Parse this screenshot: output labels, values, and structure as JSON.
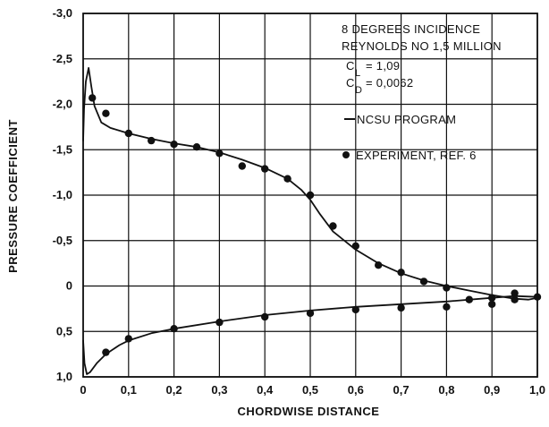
{
  "chart_data": {
    "type": "scatter",
    "xlabel": "CHORDWISE DISTANCE",
    "ylabel": "PRESSURE COEFFICIENT",
    "xlim": [
      0,
      1.0
    ],
    "ylim": [
      1.0,
      -3.0
    ],
    "y_inverted": true,
    "grid": true,
    "xticks": [
      {
        "value": 0,
        "label": "0"
      },
      {
        "value": 0.1,
        "label": "0,1"
      },
      {
        "value": 0.2,
        "label": "0,2"
      },
      {
        "value": 0.3,
        "label": "0,3"
      },
      {
        "value": 0.4,
        "label": "0,4"
      },
      {
        "value": 0.5,
        "label": "0,5"
      },
      {
        "value": 0.6,
        "label": "0,6"
      },
      {
        "value": 0.7,
        "label": "0,7"
      },
      {
        "value": 0.8,
        "label": "0,8"
      },
      {
        "value": 0.9,
        "label": "0,9"
      },
      {
        "value": 1.0,
        "label": "1,0"
      }
    ],
    "yticks": [
      {
        "value": -3.0,
        "label": "-3,0"
      },
      {
        "value": -2.5,
        "label": "-2,5"
      },
      {
        "value": -2.0,
        "label": "-2,0"
      },
      {
        "value": -1.5,
        "label": "-1,5"
      },
      {
        "value": -1.0,
        "label": "-1,0"
      },
      {
        "value": -0.5,
        "label": "-0,5"
      },
      {
        "value": 0,
        "label": "0"
      },
      {
        "value": 0.5,
        "label": "0,5"
      },
      {
        "value": 1.0,
        "label": "1,0"
      }
    ],
    "annotations": [
      "8 DEGREES INCIDENCE",
      "REYNOLDS NO 1,5 MILLION"
    ],
    "coefficients": {
      "cl_label": "C",
      "cl_sub": "L",
      "cl_value": "= 1,09",
      "cd_label": "C",
      "cd_sub": "D",
      "cd_value": "= 0,0062"
    },
    "legend": {
      "placement": "top-right",
      "program_label": "NCSU PROGRAM",
      "experiment_label": "EXPERIMENT, REF. 6"
    },
    "series": [
      {
        "name": "NCSU PROGRAM",
        "kind": "line",
        "segments": [
          [
            [
              0,
              -1.6
            ],
            [
              0.002,
              -1.95
            ],
            [
              0.006,
              -2.25
            ],
            [
              0.012,
              -2.4
            ],
            [
              0.018,
              -2.2
            ],
            [
              0.025,
              -1.98
            ],
            [
              0.04,
              -1.8
            ],
            [
              0.06,
              -1.74
            ],
            [
              0.1,
              -1.68
            ],
            [
              0.15,
              -1.62
            ],
            [
              0.2,
              -1.57
            ],
            [
              0.25,
              -1.53
            ],
            [
              0.3,
              -1.47
            ],
            [
              0.35,
              -1.39
            ],
            [
              0.4,
              -1.3
            ],
            [
              0.45,
              -1.18
            ],
            [
              0.48,
              -1.06
            ],
            [
              0.5,
              -0.95
            ],
            [
              0.52,
              -0.8
            ],
            [
              0.55,
              -0.6
            ],
            [
              0.6,
              -0.4
            ],
            [
              0.65,
              -0.25
            ],
            [
              0.7,
              -0.14
            ],
            [
              0.75,
              -0.06
            ],
            [
              0.8,
              0.0
            ],
            [
              0.85,
              0.05
            ],
            [
              0.9,
              0.1
            ],
            [
              0.95,
              0.14
            ],
            [
              0.98,
              0.15
            ],
            [
              1.0,
              0.13
            ]
          ],
          [
            [
              0,
              0.6
            ],
            [
              0.003,
              0.85
            ],
            [
              0.008,
              0.97
            ],
            [
              0.015,
              0.95
            ],
            [
              0.03,
              0.85
            ],
            [
              0.05,
              0.75
            ],
            [
              0.08,
              0.65
            ],
            [
              0.1,
              0.6
            ],
            [
              0.15,
              0.52
            ],
            [
              0.2,
              0.47
            ],
            [
              0.3,
              0.39
            ],
            [
              0.4,
              0.32
            ],
            [
              0.5,
              0.27
            ],
            [
              0.6,
              0.23
            ],
            [
              0.7,
              0.2
            ],
            [
              0.8,
              0.17
            ],
            [
              0.9,
              0.13
            ],
            [
              0.95,
              0.11
            ],
            [
              1.0,
              0.12
            ]
          ]
        ]
      },
      {
        "name": "EXPERIMENT, REF. 6",
        "kind": "scatter",
        "points": [
          [
            0.02,
            -2.07
          ],
          [
            0.05,
            -1.9
          ],
          [
            0.1,
            -1.68
          ],
          [
            0.15,
            -1.6
          ],
          [
            0.2,
            -1.56
          ],
          [
            0.25,
            -1.53
          ],
          [
            0.3,
            -1.46
          ],
          [
            0.35,
            -1.32
          ],
          [
            0.4,
            -1.29
          ],
          [
            0.45,
            -1.18
          ],
          [
            0.5,
            -1.0
          ],
          [
            0.55,
            -0.66
          ],
          [
            0.6,
            -0.44
          ],
          [
            0.65,
            -0.23
          ],
          [
            0.7,
            -0.15
          ],
          [
            0.75,
            -0.05
          ],
          [
            0.8,
            0.02
          ],
          [
            0.85,
            0.15
          ],
          [
            0.9,
            0.13
          ],
          [
            0.95,
            0.08
          ],
          [
            1.0,
            0.12
          ],
          [
            0.05,
            0.73
          ],
          [
            0.1,
            0.58
          ],
          [
            0.2,
            0.47
          ],
          [
            0.3,
            0.4
          ],
          [
            0.4,
            0.34
          ],
          [
            0.5,
            0.3
          ],
          [
            0.6,
            0.26
          ],
          [
            0.7,
            0.24
          ],
          [
            0.8,
            0.23
          ],
          [
            0.9,
            0.2
          ],
          [
            0.95,
            0.15
          ]
        ]
      }
    ]
  }
}
